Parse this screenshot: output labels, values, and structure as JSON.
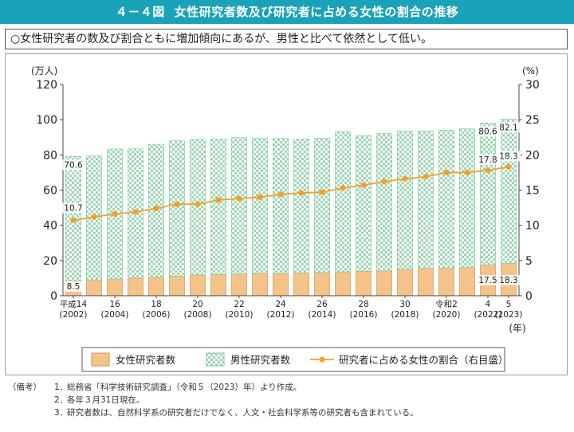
{
  "header": {
    "figure_number": "４－４図",
    "title": "女性研究者数及び研究者に占める女性の割合の推移"
  },
  "summary": "○女性研究者の数及び割合ともに増加傾向にあるが、男性と比べて依然として低い。",
  "chart_data": {
    "type": "bar",
    "stacked": true,
    "title": "女性研究者数及び研究者に占める女性の割合の推移",
    "ylabel_left": "(万人)",
    "ylabel_right": "(%)",
    "xlabel": "(年)",
    "ylim_left": [
      0,
      120
    ],
    "yticks_left": [
      0,
      20,
      40,
      60,
      80,
      100,
      120
    ],
    "ylim_right": [
      0,
      30
    ],
    "yticks_right": [
      0,
      5,
      10,
      15,
      20,
      25,
      30
    ],
    "x_tick_labels": [
      {
        "era": "平成14",
        "year": "(2002)"
      },
      {
        "era": "16",
        "year": "(2004)"
      },
      {
        "era": "18",
        "year": "(2006)"
      },
      {
        "era": "20",
        "year": "(2008)"
      },
      {
        "era": "22",
        "year": "(2010)"
      },
      {
        "era": "24",
        "year": "(2012)"
      },
      {
        "era": "26",
        "year": "(2014)"
      },
      {
        "era": "28",
        "year": "(2016)"
      },
      {
        "era": "30",
        "year": "(2018)"
      },
      {
        "era": "令和2",
        "year": "(2020)"
      },
      {
        "era": "4",
        "year": "(2022)"
      },
      {
        "era": "5",
        "year": "(2023)"
      }
    ],
    "years": [
      2002,
      2003,
      2004,
      2005,
      2006,
      2007,
      2008,
      2009,
      2010,
      2011,
      2012,
      2013,
      2014,
      2015,
      2016,
      2017,
      2018,
      2019,
      2020,
      2021,
      2022,
      2023
    ],
    "series": [
      {
        "name": "女性研究者数",
        "axis": "left",
        "kind": "bar",
        "color": "#f5c38a",
        "values": [
          8.5,
          9.0,
          9.6,
          10.0,
          10.6,
          11.1,
          11.8,
          12.0,
          12.4,
          12.7,
          12.6,
          13.0,
          13.2,
          13.6,
          13.9,
          14.1,
          15.0,
          15.5,
          15.8,
          16.0,
          17.5,
          18.3
        ]
      },
      {
        "name": "男性研究者数",
        "axis": "left",
        "kind": "bar",
        "color": "#c9ead6",
        "values": [
          70.6,
          70.4,
          73.7,
          73.4,
          75.4,
          76.9,
          77.0,
          77.0,
          77.4,
          76.9,
          76.7,
          76.0,
          76.3,
          79.6,
          77.1,
          78.0,
          78.5,
          78.0,
          78.3,
          78.8,
          80.6,
          82.1
        ]
      },
      {
        "name": "研究者に占める女性の割合（右目盛）",
        "axis": "right",
        "kind": "line",
        "color": "#f0a030",
        "values": [
          10.7,
          11.2,
          11.6,
          11.9,
          12.4,
          13.0,
          13.0,
          13.6,
          13.8,
          14.0,
          14.4,
          14.6,
          14.7,
          15.3,
          15.7,
          16.2,
          16.6,
          16.9,
          17.5,
          17.5,
          17.8,
          18.3
        ]
      }
    ],
    "annotations": {
      "first_male": "70.6",
      "first_female": "8.5",
      "first_ratio": "10.7",
      "last_male": [
        "80.6",
        "82.1"
      ],
      "last_female": [
        "17.5",
        "18.3"
      ],
      "last_ratio": [
        "17.8",
        "18.3"
      ]
    },
    "legend": {
      "position": "bottom",
      "items": [
        "女性研究者数",
        "男性研究者数",
        "研究者に占める女性の割合（右目盛）"
      ]
    }
  },
  "notes": {
    "head": "（備考）",
    "items": [
      {
        "num": "1．",
        "text": "総務省「科学技術研究調査」（令和５（2023）年）より作成。"
      },
      {
        "num": "2．",
        "text": "各年３月31日現在。"
      },
      {
        "num": "3．",
        "text": "研究者数は、自然科学系の研究者だけでなく、人文・社会科学系等の研究者も含まれている。"
      }
    ]
  }
}
